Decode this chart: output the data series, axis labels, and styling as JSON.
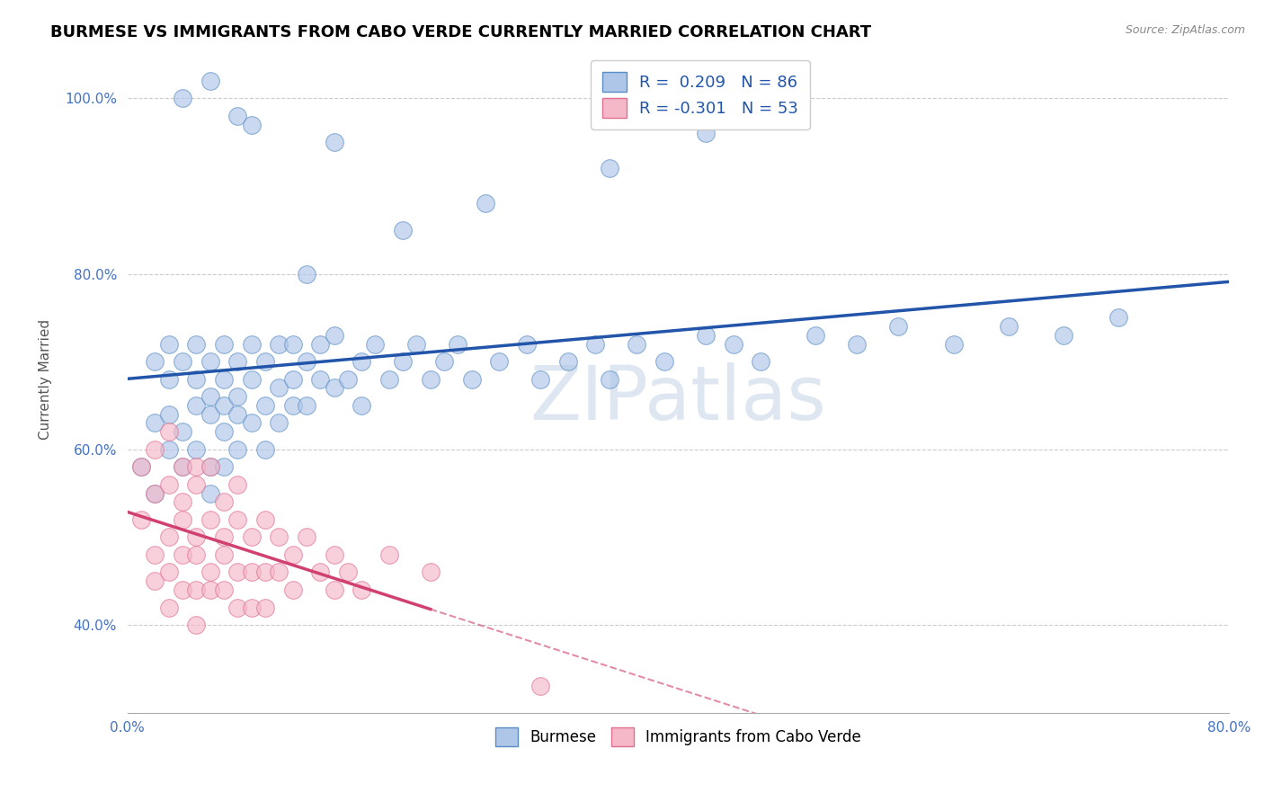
{
  "title": "BURMESE VS IMMIGRANTS FROM CABO VERDE CURRENTLY MARRIED CORRELATION CHART",
  "source": "Source: ZipAtlas.com",
  "ylabel": "Currently Married",
  "burmese_color": "#aec6e8",
  "cabo_verde_color": "#f4b8c8",
  "burmese_edge_color": "#5b8ec4",
  "cabo_verde_edge_color": "#e07090",
  "burmese_line_color": "#2255aa",
  "cabo_verde_line_color": "#d04070",
  "watermark": "ZIPatlas",
  "xlim": [
    0.0,
    0.8
  ],
  "ylim": [
    0.3,
    1.06
  ],
  "yticks": [
    0.4,
    0.6,
    0.8,
    1.0
  ],
  "xticks": [
    0.0,
    0.1,
    0.2,
    0.3,
    0.4,
    0.5,
    0.6,
    0.7,
    0.8
  ],
  "burmese_scatter_x": [
    0.01,
    0.02,
    0.02,
    0.02,
    0.03,
    0.03,
    0.03,
    0.03,
    0.04,
    0.04,
    0.04,
    0.05,
    0.05,
    0.05,
    0.05,
    0.06,
    0.06,
    0.06,
    0.06,
    0.06,
    0.07,
    0.07,
    0.07,
    0.07,
    0.07,
    0.08,
    0.08,
    0.08,
    0.08,
    0.09,
    0.09,
    0.09,
    0.1,
    0.1,
    0.1,
    0.11,
    0.11,
    0.11,
    0.12,
    0.12,
    0.12,
    0.13,
    0.13,
    0.14,
    0.14,
    0.15,
    0.15,
    0.16,
    0.17,
    0.17,
    0.18,
    0.19,
    0.2,
    0.21,
    0.22,
    0.23,
    0.24,
    0.25,
    0.27,
    0.29,
    0.3,
    0.32,
    0.34,
    0.35,
    0.37,
    0.39,
    0.42,
    0.44,
    0.46,
    0.5,
    0.53,
    0.56,
    0.6,
    0.64,
    0.68,
    0.72,
    0.26,
    0.2,
    0.13,
    0.35,
    0.42,
    0.15,
    0.08,
    0.04,
    0.06,
    0.09
  ],
  "burmese_scatter_y": [
    0.58,
    0.63,
    0.55,
    0.7,
    0.6,
    0.68,
    0.72,
    0.64,
    0.62,
    0.7,
    0.58,
    0.65,
    0.72,
    0.6,
    0.68,
    0.58,
    0.64,
    0.7,
    0.55,
    0.66,
    0.62,
    0.68,
    0.72,
    0.58,
    0.65,
    0.64,
    0.7,
    0.6,
    0.66,
    0.68,
    0.63,
    0.72,
    0.65,
    0.7,
    0.6,
    0.67,
    0.63,
    0.72,
    0.68,
    0.65,
    0.72,
    0.7,
    0.65,
    0.68,
    0.72,
    0.67,
    0.73,
    0.68,
    0.7,
    0.65,
    0.72,
    0.68,
    0.7,
    0.72,
    0.68,
    0.7,
    0.72,
    0.68,
    0.7,
    0.72,
    0.68,
    0.7,
    0.72,
    0.68,
    0.72,
    0.7,
    0.73,
    0.72,
    0.7,
    0.73,
    0.72,
    0.74,
    0.72,
    0.74,
    0.73,
    0.75,
    0.88,
    0.85,
    0.8,
    0.92,
    0.96,
    0.95,
    0.98,
    1.0,
    1.02,
    0.97
  ],
  "cabo_verde_scatter_x": [
    0.01,
    0.01,
    0.02,
    0.02,
    0.02,
    0.02,
    0.03,
    0.03,
    0.03,
    0.03,
    0.03,
    0.04,
    0.04,
    0.04,
    0.04,
    0.04,
    0.05,
    0.05,
    0.05,
    0.05,
    0.05,
    0.05,
    0.06,
    0.06,
    0.06,
    0.06,
    0.07,
    0.07,
    0.07,
    0.07,
    0.08,
    0.08,
    0.08,
    0.08,
    0.09,
    0.09,
    0.09,
    0.1,
    0.1,
    0.1,
    0.11,
    0.11,
    0.12,
    0.12,
    0.13,
    0.14,
    0.15,
    0.15,
    0.16,
    0.17,
    0.19,
    0.22,
    0.3
  ],
  "cabo_verde_scatter_y": [
    0.52,
    0.58,
    0.48,
    0.55,
    0.6,
    0.45,
    0.5,
    0.56,
    0.62,
    0.46,
    0.42,
    0.52,
    0.58,
    0.44,
    0.48,
    0.54,
    0.5,
    0.56,
    0.44,
    0.48,
    0.4,
    0.58,
    0.52,
    0.46,
    0.58,
    0.44,
    0.5,
    0.54,
    0.44,
    0.48,
    0.52,
    0.46,
    0.42,
    0.56,
    0.5,
    0.46,
    0.42,
    0.52,
    0.46,
    0.42,
    0.5,
    0.46,
    0.48,
    0.44,
    0.5,
    0.46,
    0.48,
    0.44,
    0.46,
    0.44,
    0.48,
    0.46,
    0.33
  ]
}
